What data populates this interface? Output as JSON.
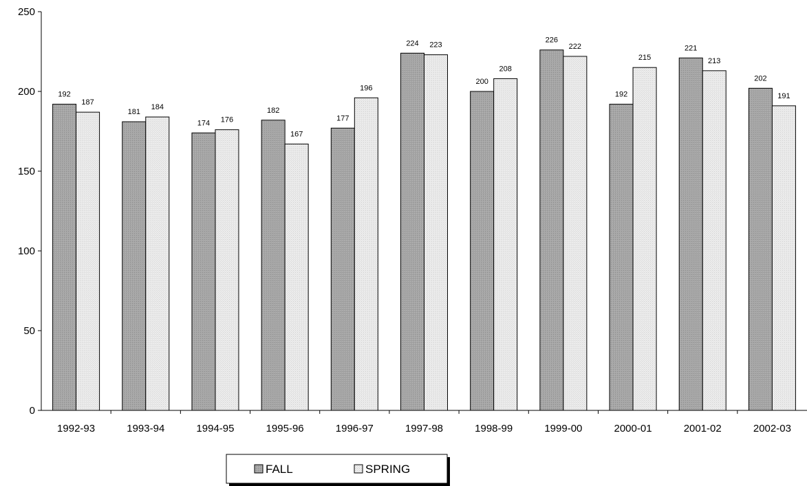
{
  "chart_data": {
    "type": "bar",
    "title": "",
    "xlabel": "",
    "ylabel": "",
    "ylim": [
      0,
      250
    ],
    "yticks": [
      0,
      50,
      100,
      150,
      200,
      250
    ],
    "grid": false,
    "legend_position": "bottom-center",
    "categories": [
      "1992-93",
      "1993-94",
      "1994-95",
      "1995-96",
      "1996-97",
      "1997-98",
      "1998-99",
      "1999-00",
      "2000-01",
      "2001-02",
      "2002-03"
    ],
    "series": [
      {
        "name": "FALL",
        "color": "#a6a6a6",
        "values": [
          192,
          181,
          174,
          182,
          177,
          224,
          200,
          226,
          192,
          221,
          202
        ]
      },
      {
        "name": "SPRING",
        "color": "#ececec",
        "values": [
          187,
          184,
          176,
          167,
          196,
          223,
          208,
          222,
          215,
          213,
          191
        ]
      }
    ]
  }
}
